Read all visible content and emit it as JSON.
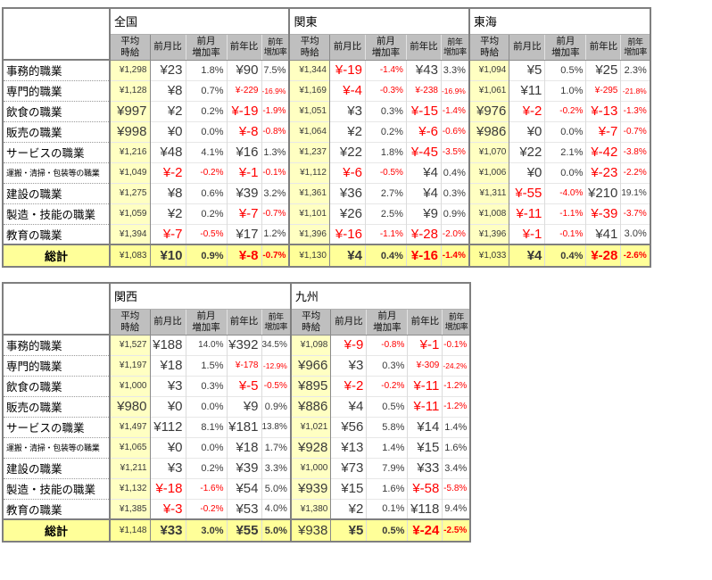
{
  "palette": {
    "negative_red": "#FF0000",
    "subheader_gray": "#BFBFBF",
    "avg_column_yellow": "#FFFFC2",
    "total_row_yellow": "#FFFF99",
    "border_gray": "#7F7F7F",
    "value_text": "#3A3A3A"
  },
  "chart_data": {
    "type": "table",
    "description_visible_text_only": true,
    "column_headers": [
      [
        "平均",
        "時給"
      ],
      [
        "前月比"
      ],
      [
        "前月",
        "増加率"
      ],
      [
        "前年比"
      ],
      [
        "前年",
        "増加率"
      ]
    ],
    "row_labels": [
      "事務的職業",
      "専門的職業",
      "飲食の職業",
      "販売の職業",
      "サービスの職業",
      "運搬・清掃・包装等の職業",
      "建設の職業",
      "製造・技能の職業",
      "教育の職業",
      "総計"
    ],
    "tables": [
      {
        "regions": [
          {
            "name": "全国",
            "rows": [
              [
                "¥1,298",
                "¥23",
                "1.8%",
                "¥90",
                "7.5%"
              ],
              [
                "¥1,128",
                "¥8",
                "0.7%",
                "¥-229",
                "-16.9%"
              ],
              [
                "¥997",
                "¥2",
                "0.2%",
                "¥-19",
                "-1.9%"
              ],
              [
                "¥998",
                "¥0",
                "0.0%",
                "¥-8",
                "-0.8%"
              ],
              [
                "¥1,216",
                "¥48",
                "4.1%",
                "¥16",
                "1.3%"
              ],
              [
                "¥1,049",
                "¥-2",
                "-0.2%",
                "¥-1",
                "-0.1%"
              ],
              [
                "¥1,275",
                "¥8",
                "0.6%",
                "¥39",
                "3.2%"
              ],
              [
                "¥1,059",
                "¥2",
                "0.2%",
                "¥-7",
                "-0.7%"
              ],
              [
                "¥1,394",
                "¥-7",
                "-0.5%",
                "¥17",
                "1.2%"
              ],
              [
                "¥1,083",
                "¥10",
                "0.9%",
                "¥-8",
                "-0.7%"
              ]
            ]
          },
          {
            "name": "関東",
            "rows": [
              [
                "¥1,344",
                "¥-19",
                "-1.4%",
                "¥43",
                "3.3%"
              ],
              [
                "¥1,169",
                "¥-4",
                "-0.3%",
                "¥-238",
                "-16.9%"
              ],
              [
                "¥1,051",
                "¥3",
                "0.3%",
                "¥-15",
                "-1.4%"
              ],
              [
                "¥1,064",
                "¥2",
                "0.2%",
                "¥-6",
                "-0.6%"
              ],
              [
                "¥1,237",
                "¥22",
                "1.8%",
                "¥-45",
                "-3.5%"
              ],
              [
                "¥1,112",
                "¥-6",
                "-0.5%",
                "¥4",
                "0.4%"
              ],
              [
                "¥1,361",
                "¥36",
                "2.7%",
                "¥4",
                "0.3%"
              ],
              [
                "¥1,101",
                "¥26",
                "2.5%",
                "¥9",
                "0.9%"
              ],
              [
                "¥1,396",
                "¥-16",
                "-1.1%",
                "¥-28",
                "-2.0%"
              ],
              [
                "¥1,130",
                "¥4",
                "0.4%",
                "¥-16",
                "-1.4%"
              ]
            ]
          },
          {
            "name": "東海",
            "rows": [
              [
                "¥1,094",
                "¥5",
                "0.5%",
                "¥25",
                "2.3%"
              ],
              [
                "¥1,061",
                "¥11",
                "1.0%",
                "¥-295",
                "-21.8%"
              ],
              [
                "¥976",
                "¥-2",
                "-0.2%",
                "¥-13",
                "-1.3%"
              ],
              [
                "¥986",
                "¥0",
                "0.0%",
                "¥-7",
                "-0.7%"
              ],
              [
                "¥1,070",
                "¥22",
                "2.1%",
                "¥-42",
                "-3.8%"
              ],
              [
                "¥1,006",
                "¥0",
                "0.0%",
                "¥-23",
                "-2.2%"
              ],
              [
                "¥1,311",
                "¥-55",
                "-4.0%",
                "¥210",
                "19.1%"
              ],
              [
                "¥1,008",
                "¥-11",
                "-1.1%",
                "¥-39",
                "-3.7%"
              ],
              [
                "¥1,396",
                "¥-1",
                "-0.1%",
                "¥41",
                "3.0%"
              ],
              [
                "¥1,033",
                "¥4",
                "0.4%",
                "¥-28",
                "-2.6%"
              ]
            ]
          }
        ]
      },
      {
        "regions": [
          {
            "name": "関西",
            "rows": [
              [
                "¥1,527",
                "¥188",
                "14.0%",
                "¥392",
                "34.5%"
              ],
              [
                "¥1,197",
                "¥18",
                "1.5%",
                "¥-178",
                "-12.9%"
              ],
              [
                "¥1,000",
                "¥3",
                "0.3%",
                "¥-5",
                "-0.5%"
              ],
              [
                "¥980",
                "¥0",
                "0.0%",
                "¥9",
                "0.9%"
              ],
              [
                "¥1,497",
                "¥112",
                "8.1%",
                "¥181",
                "13.8%"
              ],
              [
                "¥1,065",
                "¥0",
                "0.0%",
                "¥18",
                "1.7%"
              ],
              [
                "¥1,211",
                "¥3",
                "0.2%",
                "¥39",
                "3.3%"
              ],
              [
                "¥1,132",
                "¥-18",
                "-1.6%",
                "¥54",
                "5.0%"
              ],
              [
                "¥1,385",
                "¥-3",
                "-0.2%",
                "¥53",
                "4.0%"
              ],
              [
                "¥1,148",
                "¥33",
                "3.0%",
                "¥55",
                "5.0%"
              ]
            ]
          },
          {
            "name": "九州",
            "rows": [
              [
                "¥1,098",
                "¥-9",
                "-0.8%",
                "¥-1",
                "-0.1%"
              ],
              [
                "¥966",
                "¥3",
                "0.3%",
                "¥-309",
                "-24.2%"
              ],
              [
                "¥895",
                "¥-2",
                "-0.2%",
                "¥-11",
                "-1.2%"
              ],
              [
                "¥886",
                "¥4",
                "0.5%",
                "¥-11",
                "-1.2%"
              ],
              [
                "¥1,021",
                "¥56",
                "5.8%",
                "¥14",
                "1.4%"
              ],
              [
                "¥928",
                "¥13",
                "1.4%",
                "¥15",
                "1.6%"
              ],
              [
                "¥1,000",
                "¥73",
                "7.9%",
                "¥33",
                "3.4%"
              ],
              [
                "¥939",
                "¥15",
                "1.6%",
                "¥-58",
                "-5.8%"
              ],
              [
                "¥1,380",
                "¥2",
                "0.1%",
                "¥118",
                "9.4%"
              ],
              [
                "¥938",
                "¥5",
                "0.5%",
                "¥-24",
                "-2.5%"
              ]
            ]
          }
        ]
      }
    ]
  }
}
